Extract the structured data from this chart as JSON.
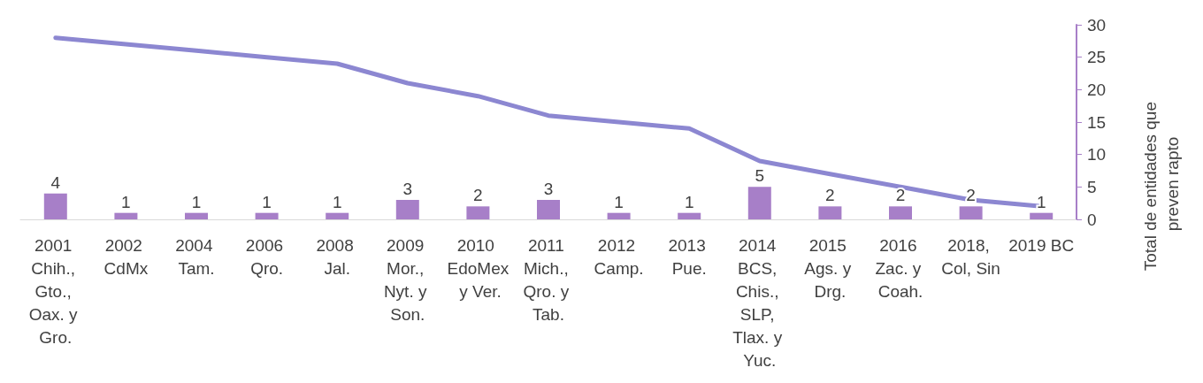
{
  "chart_data": {
    "type": "bar",
    "ylabel": "Total de entidades que preven rapto",
    "categories": [
      "2001 Chih., Gto., Oax. y Gro.",
      "2002 CdMx",
      "2004 Tam.",
      "2006 Qro.",
      "2008 Jal.",
      "2009 Mor., Nyt. y Son.",
      "2010 EdoMex y Ver.",
      "2011 Mich., Qro. y Tab.",
      "2012 Camp.",
      "2013 Pue.",
      "2014 BCS, Chis., SLP, Tlax. y Yuc.",
      "2015 Ags. y Drg.",
      "2016 Zac. y Coah.",
      "2018, Col, Sin",
      "2019 BC"
    ],
    "series": [
      {
        "color": "#a77fc8",
        "values": [
          4,
          1,
          1,
          1,
          1,
          3,
          2,
          3,
          1,
          1,
          5,
          2,
          2,
          2,
          1
        ],
        "value_labels": [
          "4",
          "1",
          "1",
          "1",
          "1",
          "3",
          "2",
          "3",
          "1",
          "1",
          "5",
          "2",
          "2",
          "2",
          "1"
        ]
      },
      {
        "type": "line",
        "color": "#8c87d1",
        "values": [
          28,
          27,
          26,
          25,
          24,
          21,
          19,
          16,
          15,
          14,
          9,
          7,
          5,
          3,
          2
        ]
      }
    ],
    "ylim": [
      0,
      30
    ],
    "yticks": [
      0,
      5,
      10,
      15,
      20,
      25,
      30
    ],
    "grid": false,
    "marker": "none",
    "line_style": "solid"
  }
}
